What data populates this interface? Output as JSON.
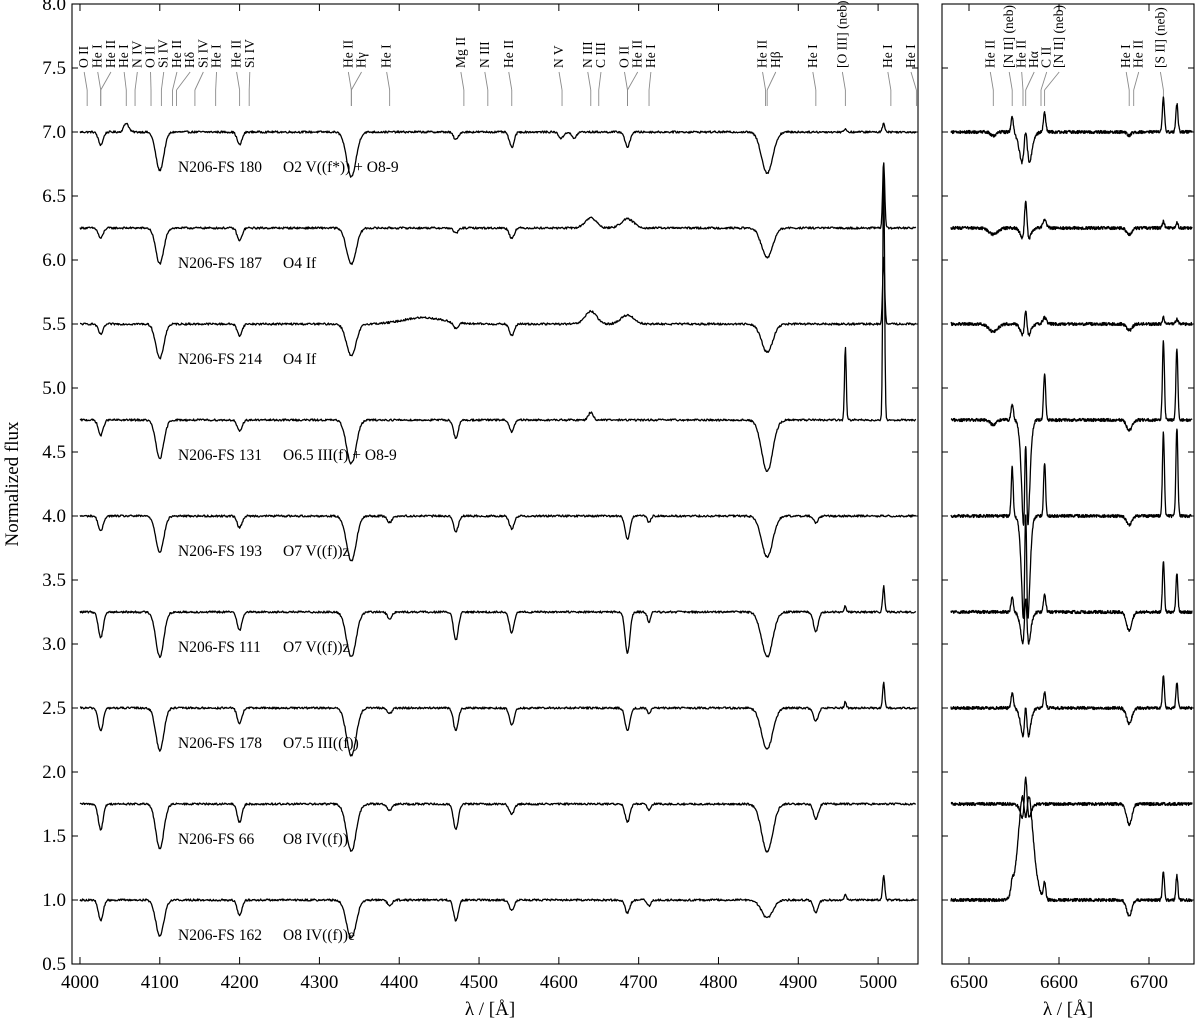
{
  "chart_data": {
    "type": "line",
    "ylabel": "Normalized flux",
    "ylim": [
      0.5,
      8.0
    ],
    "y_ticks": [
      "0.5",
      "1.0",
      "1.5",
      "2.0",
      "2.5",
      "3.0",
      "3.5",
      "4.0",
      "4.5",
      "5.0",
      "5.5",
      "6.0",
      "6.5",
      "7.0",
      "7.5",
      "8.0"
    ],
    "y_tick_values": [
      0.5,
      1.0,
      1.5,
      2.0,
      2.5,
      3.0,
      3.5,
      4.0,
      4.5,
      5.0,
      5.5,
      6.0,
      6.5,
      7.0,
      7.5,
      8.0
    ],
    "panels": [
      {
        "xlabel": "λ / [Å]",
        "xlim": [
          3990,
          5050
        ],
        "x_ticks": [
          "4000",
          "4100",
          "4200",
          "4300",
          "4400",
          "4500",
          "4600",
          "4700",
          "4800",
          "4900",
          "5000"
        ],
        "x_tick_values": [
          4000,
          4100,
          4200,
          4300,
          4400,
          4500,
          4600,
          4700,
          4800,
          4900,
          5000
        ]
      },
      {
        "xlabel": "λ / [Å]",
        "xlim": [
          6470,
          6750
        ],
        "x_ticks": [
          "6500",
          "6600",
          "6700"
        ],
        "x_tick_values": [
          6500,
          6600,
          6700
        ]
      }
    ],
    "series": [
      {
        "name": "N206-FS 180",
        "sptype": "O2 V((f*)) + O8-9",
        "offset": 7.0,
        "blue_lines": [
          [
            4026,
            0.1,
            3
          ],
          [
            4058,
            -0.07,
            3
          ],
          [
            4100,
            0.3,
            5
          ],
          [
            4200,
            0.1,
            3
          ],
          [
            4340,
            0.35,
            6
          ],
          [
            4471,
            0.06,
            3
          ],
          [
            4541,
            0.12,
            3
          ],
          [
            4603,
            0.05,
            3
          ],
          [
            4619,
            0.05,
            3
          ],
          [
            4686,
            0.12,
            3
          ],
          [
            4861,
            0.32,
            7
          ],
          [
            4959,
            -0.03,
            1.2
          ],
          [
            5007,
            -0.07,
            1.5
          ]
        ],
        "red_lines": [
          [
            6527,
            0.03,
            3
          ],
          [
            6548,
            -0.12,
            1.3
          ],
          [
            6563,
            0.4,
            5
          ],
          [
            6563,
            -0.4,
            2
          ],
          [
            6584,
            -0.15,
            1.3
          ],
          [
            6678,
            0.03,
            2
          ],
          [
            6716,
            -0.27,
            1.2
          ],
          [
            6731,
            -0.22,
            1.2
          ]
        ]
      },
      {
        "name": "N206-FS 187",
        "sptype": "O4 If",
        "offset": 6.25,
        "blue_lines": [
          [
            4026,
            0.08,
            3
          ],
          [
            4100,
            0.28,
            5
          ],
          [
            4200,
            0.1,
            3
          ],
          [
            4340,
            0.28,
            6
          ],
          [
            4471,
            0.04,
            3
          ],
          [
            4541,
            0.08,
            3
          ],
          [
            4640,
            -0.08,
            7
          ],
          [
            4686,
            -0.07,
            8
          ],
          [
            4861,
            0.23,
            7
          ],
          [
            5007,
            -0.52,
            1.3
          ]
        ],
        "red_lines": [
          [
            6527,
            0.05,
            5
          ],
          [
            6563,
            0.15,
            4
          ],
          [
            6563,
            -0.35,
            1.5
          ],
          [
            6584,
            -0.06,
            2
          ],
          [
            6678,
            0.05,
            3
          ],
          [
            6716,
            -0.05,
            1.2
          ],
          [
            6731,
            -0.04,
            1.2
          ]
        ]
      },
      {
        "name": "N206-FS 214",
        "sptype": "O4 If",
        "offset": 5.5,
        "blue_lines": [
          [
            4026,
            0.08,
            3
          ],
          [
            4100,
            0.27,
            5
          ],
          [
            4200,
            0.09,
            3
          ],
          [
            4340,
            0.25,
            6
          ],
          [
            4430,
            -0.05,
            25
          ],
          [
            4471,
            0.05,
            3
          ],
          [
            4541,
            0.09,
            3
          ],
          [
            4640,
            -0.1,
            7
          ],
          [
            4686,
            -0.07,
            8
          ],
          [
            4861,
            0.22,
            7
          ],
          [
            5007,
            -0.52,
            1.3
          ]
        ],
        "red_lines": [
          [
            6527,
            0.06,
            5
          ],
          [
            6563,
            0.15,
            4
          ],
          [
            6563,
            -0.25,
            1.5
          ],
          [
            6584,
            -0.05,
            2
          ],
          [
            6678,
            0.05,
            3
          ],
          [
            6716,
            -0.05,
            1.2
          ],
          [
            6731,
            -0.04,
            1.2
          ]
        ]
      },
      {
        "name": "N206-FS 131",
        "sptype": "O6.5 III(f) + O8-9",
        "offset": 4.75,
        "blue_lines": [
          [
            4026,
            0.12,
            3
          ],
          [
            4100,
            0.3,
            5
          ],
          [
            4200,
            0.09,
            3
          ],
          [
            4340,
            0.34,
            6
          ],
          [
            4471,
            0.14,
            3
          ],
          [
            4541,
            0.09,
            3
          ],
          [
            4640,
            -0.06,
            3
          ],
          [
            4861,
            0.4,
            7
          ],
          [
            4959,
            -0.58,
            1.1
          ],
          [
            5007,
            -2.0,
            1.1
          ]
        ],
        "red_lines": [
          [
            6527,
            0.04,
            3
          ],
          [
            6548,
            -0.12,
            1.3
          ],
          [
            6563,
            1.2,
            3.5
          ],
          [
            6563,
            -1.0,
            1.2
          ],
          [
            6584,
            -0.36,
            1.2
          ],
          [
            6678,
            0.08,
            3
          ],
          [
            6716,
            -0.62,
            1.1
          ],
          [
            6731,
            -0.55,
            1.1
          ]
        ]
      },
      {
        "name": "N206-FS 193",
        "sptype": "O7 V((f))z",
        "offset": 4.0,
        "blue_lines": [
          [
            4026,
            0.12,
            3
          ],
          [
            4100,
            0.28,
            5
          ],
          [
            4200,
            0.09,
            3
          ],
          [
            4340,
            0.35,
            6
          ],
          [
            4388,
            0.05,
            3
          ],
          [
            4471,
            0.12,
            3
          ],
          [
            4541,
            0.1,
            3
          ],
          [
            4686,
            0.18,
            3
          ],
          [
            4713,
            0.05,
            2
          ],
          [
            4861,
            0.32,
            7
          ],
          [
            4922,
            0.05,
            3
          ]
        ],
        "red_lines": [
          [
            6548,
            -0.38,
            1.1
          ],
          [
            6563,
            1.2,
            3.5
          ],
          [
            6563,
            -1.2,
            1.2
          ],
          [
            6584,
            -0.42,
            1.1
          ],
          [
            6678,
            0.07,
            3
          ],
          [
            6716,
            -0.65,
            1.1
          ],
          [
            6731,
            -0.68,
            1.1
          ]
        ]
      },
      {
        "name": "N206-FS 111",
        "sptype": "O7 V((f))z",
        "offset": 3.25,
        "blue_lines": [
          [
            4026,
            0.2,
            3
          ],
          [
            4100,
            0.35,
            5
          ],
          [
            4200,
            0.14,
            3
          ],
          [
            4340,
            0.35,
            6
          ],
          [
            4388,
            0.05,
            3
          ],
          [
            4471,
            0.22,
            3
          ],
          [
            4541,
            0.16,
            3
          ],
          [
            4686,
            0.32,
            3
          ],
          [
            4713,
            0.08,
            2
          ],
          [
            4861,
            0.35,
            7
          ],
          [
            4922,
            0.15,
            3
          ],
          [
            4959,
            -0.05,
            1.2
          ],
          [
            5007,
            -0.2,
            1.3
          ]
        ],
        "red_lines": [
          [
            6548,
            -0.12,
            1.3
          ],
          [
            6563,
            0.4,
            4
          ],
          [
            6563,
            -0.5,
            1.5
          ],
          [
            6584,
            -0.14,
            1.3
          ],
          [
            6678,
            0.15,
            3
          ],
          [
            6716,
            -0.4,
            1.1
          ],
          [
            6731,
            -0.3,
            1.1
          ]
        ]
      },
      {
        "name": "N206-FS 178",
        "sptype": "O7.5 III((f))",
        "offset": 2.5,
        "blue_lines": [
          [
            4026,
            0.18,
            3
          ],
          [
            4100,
            0.33,
            5
          ],
          [
            4200,
            0.12,
            3
          ],
          [
            4340,
            0.37,
            6
          ],
          [
            4388,
            0.04,
            3
          ],
          [
            4471,
            0.18,
            3
          ],
          [
            4541,
            0.13,
            3
          ],
          [
            4686,
            0.18,
            3
          ],
          [
            4713,
            0.05,
            2
          ],
          [
            4861,
            0.32,
            7
          ],
          [
            4922,
            0.1,
            3
          ],
          [
            4959,
            -0.05,
            1.2
          ],
          [
            5007,
            -0.2,
            1.3
          ]
        ],
        "red_lines": [
          [
            6548,
            -0.12,
            1.3
          ],
          [
            6563,
            0.35,
            4
          ],
          [
            6563,
            -0.35,
            1.5
          ],
          [
            6584,
            -0.12,
            1.3
          ],
          [
            6678,
            0.12,
            3
          ],
          [
            6716,
            -0.25,
            1.1
          ],
          [
            6731,
            -0.2,
            1.1
          ]
        ]
      },
      {
        "name": "N206-FS 66",
        "sptype": "O8 IV((f))",
        "offset": 1.75,
        "blue_lines": [
          [
            4026,
            0.2,
            3
          ],
          [
            4100,
            0.35,
            5
          ],
          [
            4200,
            0.14,
            3
          ],
          [
            4340,
            0.37,
            6
          ],
          [
            4388,
            0.05,
            3
          ],
          [
            4471,
            0.2,
            3
          ],
          [
            4541,
            0.08,
            3
          ],
          [
            4686,
            0.14,
            3
          ],
          [
            4713,
            0.05,
            2
          ],
          [
            4861,
            0.37,
            7
          ],
          [
            4922,
            0.12,
            3
          ]
        ],
        "red_lines": [
          [
            6563,
            0.2,
            4
          ],
          [
            6563,
            -0.4,
            1.6
          ],
          [
            6678,
            0.16,
            3
          ]
        ]
      },
      {
        "name": "N206-FS 162",
        "sptype": "O8 IV((f))e",
        "offset": 1.0,
        "blue_lines": [
          [
            4026,
            0.16,
            3
          ],
          [
            4100,
            0.28,
            5
          ],
          [
            4200,
            0.12,
            3
          ],
          [
            4340,
            0.3,
            6
          ],
          [
            4388,
            0.04,
            3
          ],
          [
            4471,
            0.16,
            3
          ],
          [
            4541,
            0.08,
            3
          ],
          [
            4686,
            0.1,
            3
          ],
          [
            4713,
            0.05,
            2
          ],
          [
            4861,
            0.14,
            7
          ],
          [
            4922,
            0.1,
            3
          ],
          [
            4959,
            -0.05,
            1.2
          ],
          [
            5007,
            -0.2,
            1.3
          ]
        ],
        "red_lines": [
          [
            6548,
            -0.08,
            1.3
          ],
          [
            6563,
            -1.0,
            7
          ],
          [
            6563,
            0.35,
            2
          ],
          [
            6584,
            -0.13,
            1.3
          ],
          [
            6678,
            0.12,
            3
          ],
          [
            6716,
            -0.23,
            1.1
          ],
          [
            6731,
            -0.19,
            1.1
          ]
        ]
      }
    ],
    "line_ids_blue": [
      {
        "label": "O II",
        "wl": 4009
      },
      {
        "label": "He I",
        "wl": 4026
      },
      {
        "label": "He II",
        "wl": 4026
      },
      {
        "label": "He I",
        "wl": 4058
      },
      {
        "label": "N IV",
        "wl": 4069
      },
      {
        "label": "O II",
        "wl": 4089
      },
      {
        "label": "Si IV",
        "wl": 4102
      },
      {
        "label": "He II",
        "wl": 4116
      },
      {
        "label": "Hδ",
        "wl": 4121
      },
      {
        "label": "Si IV",
        "wl": 4144
      },
      {
        "label": "He I",
        "wl": 4170
      },
      {
        "label": "He II",
        "wl": 4200
      },
      {
        "label": "Si IV",
        "wl": 4212
      },
      {
        "label": "He II",
        "wl": 4340
      },
      {
        "label": "Hγ",
        "wl": 4340
      },
      {
        "label": "He I",
        "wl": 4388
      },
      {
        "label": "Mg II",
        "wl": 4481
      },
      {
        "label": "N III",
        "wl": 4511
      },
      {
        "label": "He II",
        "wl": 4541
      },
      {
        "label": "N V",
        "wl": 4604
      },
      {
        "label": "N III",
        "wl": 4640
      },
      {
        "label": "C III",
        "wl": 4650
      },
      {
        "label": "O II",
        "wl": 4686
      },
      {
        "label": "He II",
        "wl": 4686
      },
      {
        "label": "He I",
        "wl": 4713
      },
      {
        "label": "He II",
        "wl": 4859
      },
      {
        "label": "Hβ",
        "wl": 4861
      },
      {
        "label": "He I",
        "wl": 4922
      },
      {
        "label": "[O III] (neb)",
        "wl": 4959
      },
      {
        "label": "He I",
        "wl": 5016
      },
      {
        "label": "He I",
        "wl": 5048
      }
    ],
    "line_ids_red": [
      {
        "label": "He II",
        "wl": 6527
      },
      {
        "label": "[N II] (neb)",
        "wl": 6548
      },
      {
        "label": "He II",
        "wl": 6560
      },
      {
        "label": "Hα",
        "wl": 6563
      },
      {
        "label": "C II",
        "wl": 6580
      },
      {
        "label": "[N II] (neb)",
        "wl": 6584
      },
      {
        "label": "He I",
        "wl": 6678
      },
      {
        "label": "He II",
        "wl": 6683
      },
      {
        "label": "[S II] (neb)",
        "wl": 6716
      }
    ]
  }
}
